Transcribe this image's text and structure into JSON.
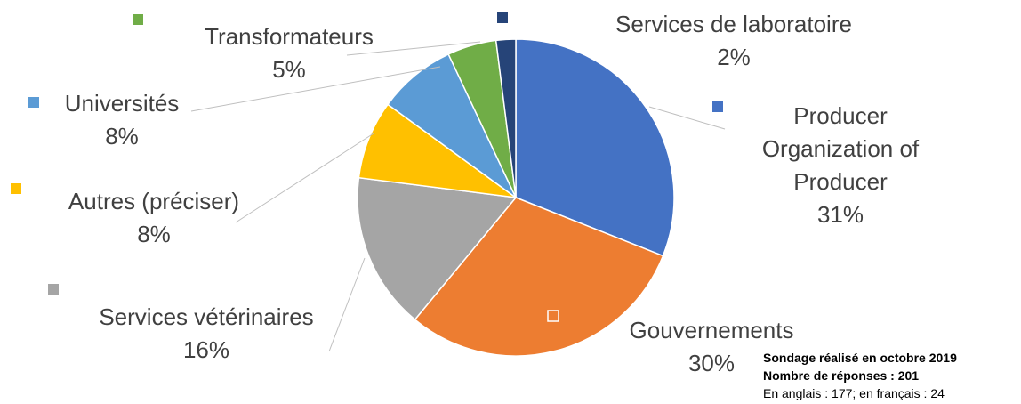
{
  "chart_data": {
    "type": "pie",
    "categories": [
      "Producer Organization of Producer",
      "Gouvernements",
      "Services vétérinaires",
      "Autres (préciser)",
      "Universités",
      "Transformateurs",
      "Services de laboratoire"
    ],
    "values": [
      31,
      30,
      16,
      8,
      8,
      5,
      2
    ],
    "value_labels": [
      "31%",
      "30%",
      "16%",
      "8%",
      "8%",
      "5%",
      "2%"
    ],
    "colors": [
      "#4472c4",
      "#ed7d31",
      "#a5a5a5",
      "#ffc000",
      "#5b9bd5",
      "#70ad47",
      "#264478"
    ],
    "annotations": [
      "Sondage réalisé en octobre 2019",
      "Nombre de réponses : 201",
      "En anglais : 177; en français : 24"
    ]
  }
}
